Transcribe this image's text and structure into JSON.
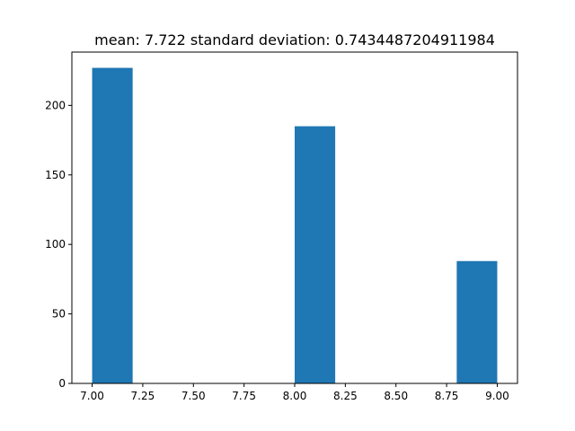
{
  "chart_data": {
    "type": "bar",
    "title": "mean: 7.722 standard deviation: 0.7434487204911984",
    "xlabel": "",
    "ylabel": "",
    "bins": [
      {
        "start": 7.0,
        "end": 7.2,
        "count": 227
      },
      {
        "start": 7.2,
        "end": 7.4,
        "count": 0
      },
      {
        "start": 7.4,
        "end": 7.6,
        "count": 0
      },
      {
        "start": 7.6,
        "end": 7.8,
        "count": 0
      },
      {
        "start": 7.8,
        "end": 8.0,
        "count": 0
      },
      {
        "start": 8.0,
        "end": 8.2,
        "count": 185
      },
      {
        "start": 8.2,
        "end": 8.4,
        "count": 0
      },
      {
        "start": 8.4,
        "end": 8.6,
        "count": 0
      },
      {
        "start": 8.6,
        "end": 8.8,
        "count": 0
      },
      {
        "start": 8.8,
        "end": 9.0,
        "count": 88
      }
    ],
    "xlim": [
      6.9,
      9.1
    ],
    "ylim": [
      0,
      238.35
    ],
    "xticks": [
      7.0,
      7.25,
      7.5,
      7.75,
      8.0,
      8.25,
      8.5,
      8.75,
      9.0
    ],
    "xtick_labels": [
      "7.00",
      "7.25",
      "7.50",
      "7.75",
      "8.00",
      "8.25",
      "8.50",
      "8.75",
      "9.00"
    ],
    "yticks": [
      0,
      50,
      100,
      150,
      200
    ],
    "ytick_labels": [
      "0",
      "50",
      "100",
      "150",
      "200"
    ],
    "bar_color": "#1f77b4",
    "grid": false,
    "legend": "none"
  }
}
